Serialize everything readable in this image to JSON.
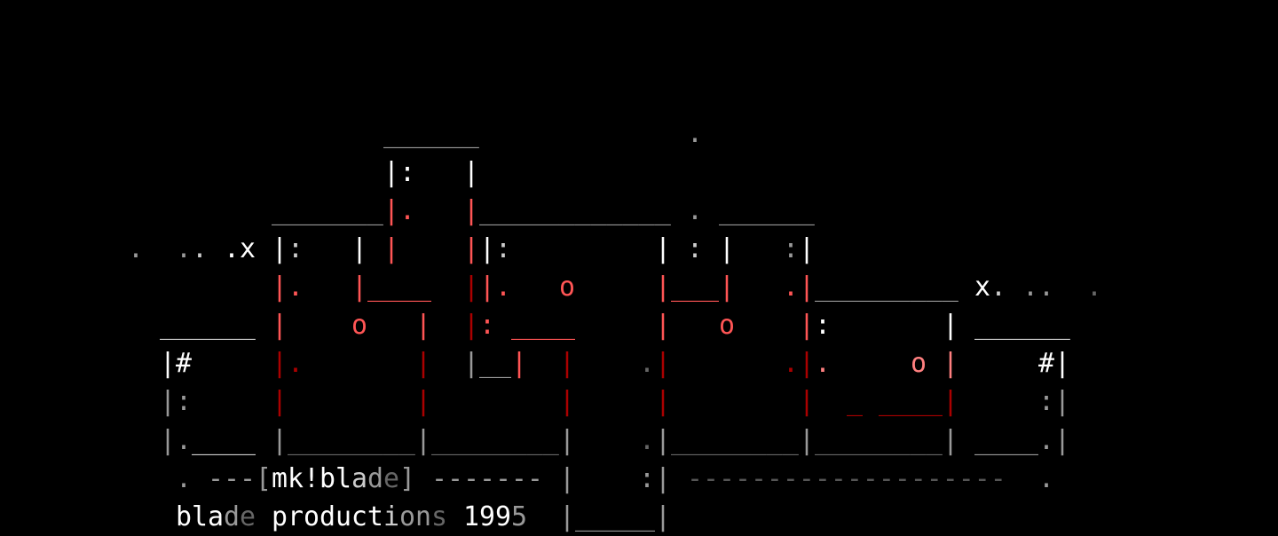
{
  "art": {
    "title_tag": "mk!blade",
    "credit_line": "blade productions 1995",
    "background": "#000000",
    "palette": {
      "W": "#ffffff",
      "L": "#cccccc",
      "G": "#999999",
      "D": "#666666",
      "E": "#555555",
      "R": "#ff5555",
      "P": "#ff8080",
      "K": "#aa0000"
    },
    "grid": {
      "cols": 80,
      "rows": 14
    },
    "rows": [
      {
        "row": 3,
        "runs": [
          [
            24,
            "______",
            "G"
          ],
          [
            43,
            ".",
            "G"
          ]
        ]
      },
      {
        "row": 4,
        "runs": [
          [
            24,
            "|:",
            "W"
          ],
          [
            29,
            "|",
            "W"
          ]
        ]
      },
      {
        "row": 5,
        "runs": [
          [
            17,
            "_______",
            "G"
          ],
          [
            24,
            "|",
            "R"
          ],
          [
            25,
            ".",
            "R"
          ],
          [
            29,
            "|",
            "R"
          ],
          [
            30,
            "____________",
            "G"
          ],
          [
            43,
            ".",
            "G"
          ],
          [
            45,
            "______",
            "G"
          ]
        ]
      },
      {
        "row": 6,
        "runs": [
          [
            8,
            ".",
            "G"
          ],
          [
            11,
            ".",
            "G"
          ],
          [
            12,
            ".",
            "L"
          ],
          [
            14,
            ".x",
            "W"
          ],
          [
            17,
            "|",
            "W"
          ],
          [
            18,
            ":",
            "L"
          ],
          [
            22,
            "|",
            "W"
          ],
          [
            24,
            "|",
            "R"
          ],
          [
            29,
            "|",
            "R"
          ],
          [
            30,
            "|",
            "W"
          ],
          [
            31,
            ":",
            "L"
          ],
          [
            41,
            "|",
            "W"
          ],
          [
            43,
            ":",
            "L"
          ],
          [
            45,
            "|",
            "W"
          ],
          [
            49,
            ":",
            "G"
          ],
          [
            50,
            "|",
            "W"
          ]
        ]
      },
      {
        "row": 7,
        "runs": [
          [
            17,
            "|.",
            "R"
          ],
          [
            22,
            "|____",
            "R"
          ],
          [
            29,
            "|",
            "K"
          ],
          [
            30,
            "|.",
            "R"
          ],
          [
            35,
            "o",
            "R"
          ],
          [
            41,
            "|___",
            "R"
          ],
          [
            45,
            "|",
            "R"
          ],
          [
            49,
            ".|",
            "R"
          ],
          [
            51,
            "_________",
            "G"
          ],
          [
            61,
            "x",
            "W"
          ],
          [
            62,
            ".",
            "L"
          ],
          [
            64,
            "..",
            "G"
          ],
          [
            68,
            ".",
            "D"
          ]
        ]
      },
      {
        "row": 8,
        "runs": [
          [
            10,
            "______",
            "L"
          ],
          [
            17,
            "|",
            "R"
          ],
          [
            22,
            "o",
            "R"
          ],
          [
            26,
            "|",
            "R"
          ],
          [
            29,
            "|",
            "K"
          ],
          [
            30,
            ":",
            "R"
          ],
          [
            32,
            "____",
            "R"
          ],
          [
            41,
            "|",
            "R"
          ],
          [
            45,
            "o",
            "R"
          ],
          [
            50,
            "|",
            "R"
          ],
          [
            51,
            ":",
            "W"
          ],
          [
            59,
            "|",
            "W"
          ],
          [
            61,
            "______",
            "L"
          ]
        ]
      },
      {
        "row": 9,
        "runs": [
          [
            10,
            "|#",
            "W"
          ],
          [
            17,
            "|.",
            "K"
          ],
          [
            26,
            "|",
            "K"
          ],
          [
            29,
            "|",
            "G"
          ],
          [
            30,
            "__",
            "G"
          ],
          [
            32,
            "|",
            "R"
          ],
          [
            35,
            "|",
            "K"
          ],
          [
            40,
            ".",
            "D"
          ],
          [
            41,
            "|",
            "K"
          ],
          [
            49,
            ".|",
            "K"
          ],
          [
            51,
            ".",
            "P"
          ],
          [
            57,
            "o",
            "P"
          ],
          [
            59,
            "|",
            "P"
          ],
          [
            65,
            "#|",
            "W"
          ]
        ]
      },
      {
        "row": 10,
        "runs": [
          [
            10,
            "|:",
            "G"
          ],
          [
            17,
            "|",
            "K"
          ],
          [
            26,
            "|",
            "K"
          ],
          [
            35,
            "|",
            "K"
          ],
          [
            41,
            "|",
            "K"
          ],
          [
            50,
            "|",
            "K"
          ],
          [
            53,
            "_",
            "K"
          ],
          [
            55,
            "____",
            "K"
          ],
          [
            59,
            "|",
            "K"
          ],
          [
            65,
            ":|",
            "G"
          ]
        ]
      },
      {
        "row": 11,
        "runs": [
          [
            10,
            "|.",
            "G"
          ],
          [
            12,
            "____",
            "L"
          ],
          [
            17,
            "|",
            "G"
          ],
          [
            18,
            "________",
            "D"
          ],
          [
            26,
            "|",
            "G"
          ],
          [
            27,
            "________",
            "D"
          ],
          [
            35,
            "|",
            "G"
          ],
          [
            40,
            ".",
            "D"
          ],
          [
            41,
            "|",
            "G"
          ],
          [
            42,
            "________",
            "D"
          ],
          [
            50,
            "|",
            "G"
          ],
          [
            51,
            "________",
            "D"
          ],
          [
            59,
            "|",
            "G"
          ],
          [
            61,
            "____",
            "G"
          ],
          [
            65,
            ".",
            "G"
          ],
          [
            66,
            "|",
            "G"
          ]
        ]
      },
      {
        "row": 12,
        "runs": [
          [
            11,
            ".",
            "G"
          ],
          [
            13,
            "---[",
            "G"
          ],
          [
            17,
            "mk!bl",
            "W"
          ],
          [
            22,
            "a",
            "L"
          ],
          [
            23,
            "d",
            "G"
          ],
          [
            24,
            "e",
            "D"
          ],
          [
            25,
            "]",
            "G"
          ],
          [
            27,
            "-------",
            "G"
          ],
          [
            35,
            "|",
            "G"
          ],
          [
            40,
            ":",
            "G"
          ],
          [
            41,
            "|",
            "G"
          ],
          [
            43,
            "--------------------",
            "E"
          ],
          [
            65,
            ".",
            "G"
          ]
        ]
      },
      {
        "row": 13,
        "runs": [
          [
            11,
            "bla",
            "W"
          ],
          [
            14,
            "d",
            "G"
          ],
          [
            15,
            "e",
            "D"
          ],
          [
            17,
            "product",
            "W"
          ],
          [
            24,
            "i",
            "L"
          ],
          [
            25,
            "on",
            "G"
          ],
          [
            27,
            "s",
            "D"
          ],
          [
            29,
            "199",
            "W"
          ],
          [
            32,
            "5",
            "G"
          ],
          [
            35,
            "|",
            "G"
          ],
          [
            36,
            "_____",
            "G"
          ],
          [
            41,
            "|",
            "G"
          ]
        ]
      }
    ]
  }
}
